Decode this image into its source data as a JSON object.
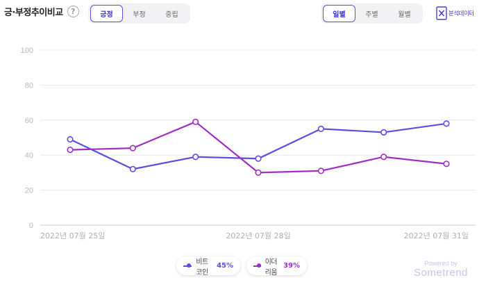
{
  "header": {
    "title": "긍·부정추이비교",
    "help_icon": "?"
  },
  "sentiment_tabs": {
    "options": [
      "긍정",
      "부정",
      "중립"
    ],
    "active": "긍정"
  },
  "period_tabs": {
    "options": [
      "일별",
      "주별",
      "월별"
    ],
    "active": "일별"
  },
  "export": {
    "icon": "excel-icon",
    "label": "분석데이터"
  },
  "footer": {
    "powered_by": "Powered by",
    "brand": "Sometrend"
  },
  "colors": {
    "accent": "#5a52e0",
    "series1": "#5b4fe0",
    "series2": "#a02ec4",
    "grid": "#e8e8e8"
  },
  "chart_data": {
    "type": "line",
    "x": [
      "2022-07-25",
      "2022-07-26",
      "2022-07-27",
      "2022-07-28",
      "2022-07-29",
      "2022-07-30",
      "2022-07-31"
    ],
    "x_tick_labels": [
      "2022년 07월 25일",
      "2022년 07월 28일",
      "2022년 07월 31일"
    ],
    "y_ticks": [
      0,
      20,
      40,
      60,
      80,
      100
    ],
    "ylim": [
      0,
      100
    ],
    "grid": true,
    "legend_position": "bottom-center",
    "series": [
      {
        "name": "비트코인",
        "share_label": "45%",
        "values": [
          49,
          32,
          39,
          38,
          55,
          53,
          58
        ]
      },
      {
        "name": "이더리움",
        "share_label": "39%",
        "values": [
          43,
          44,
          59,
          30,
          31,
          39,
          35
        ]
      }
    ]
  }
}
